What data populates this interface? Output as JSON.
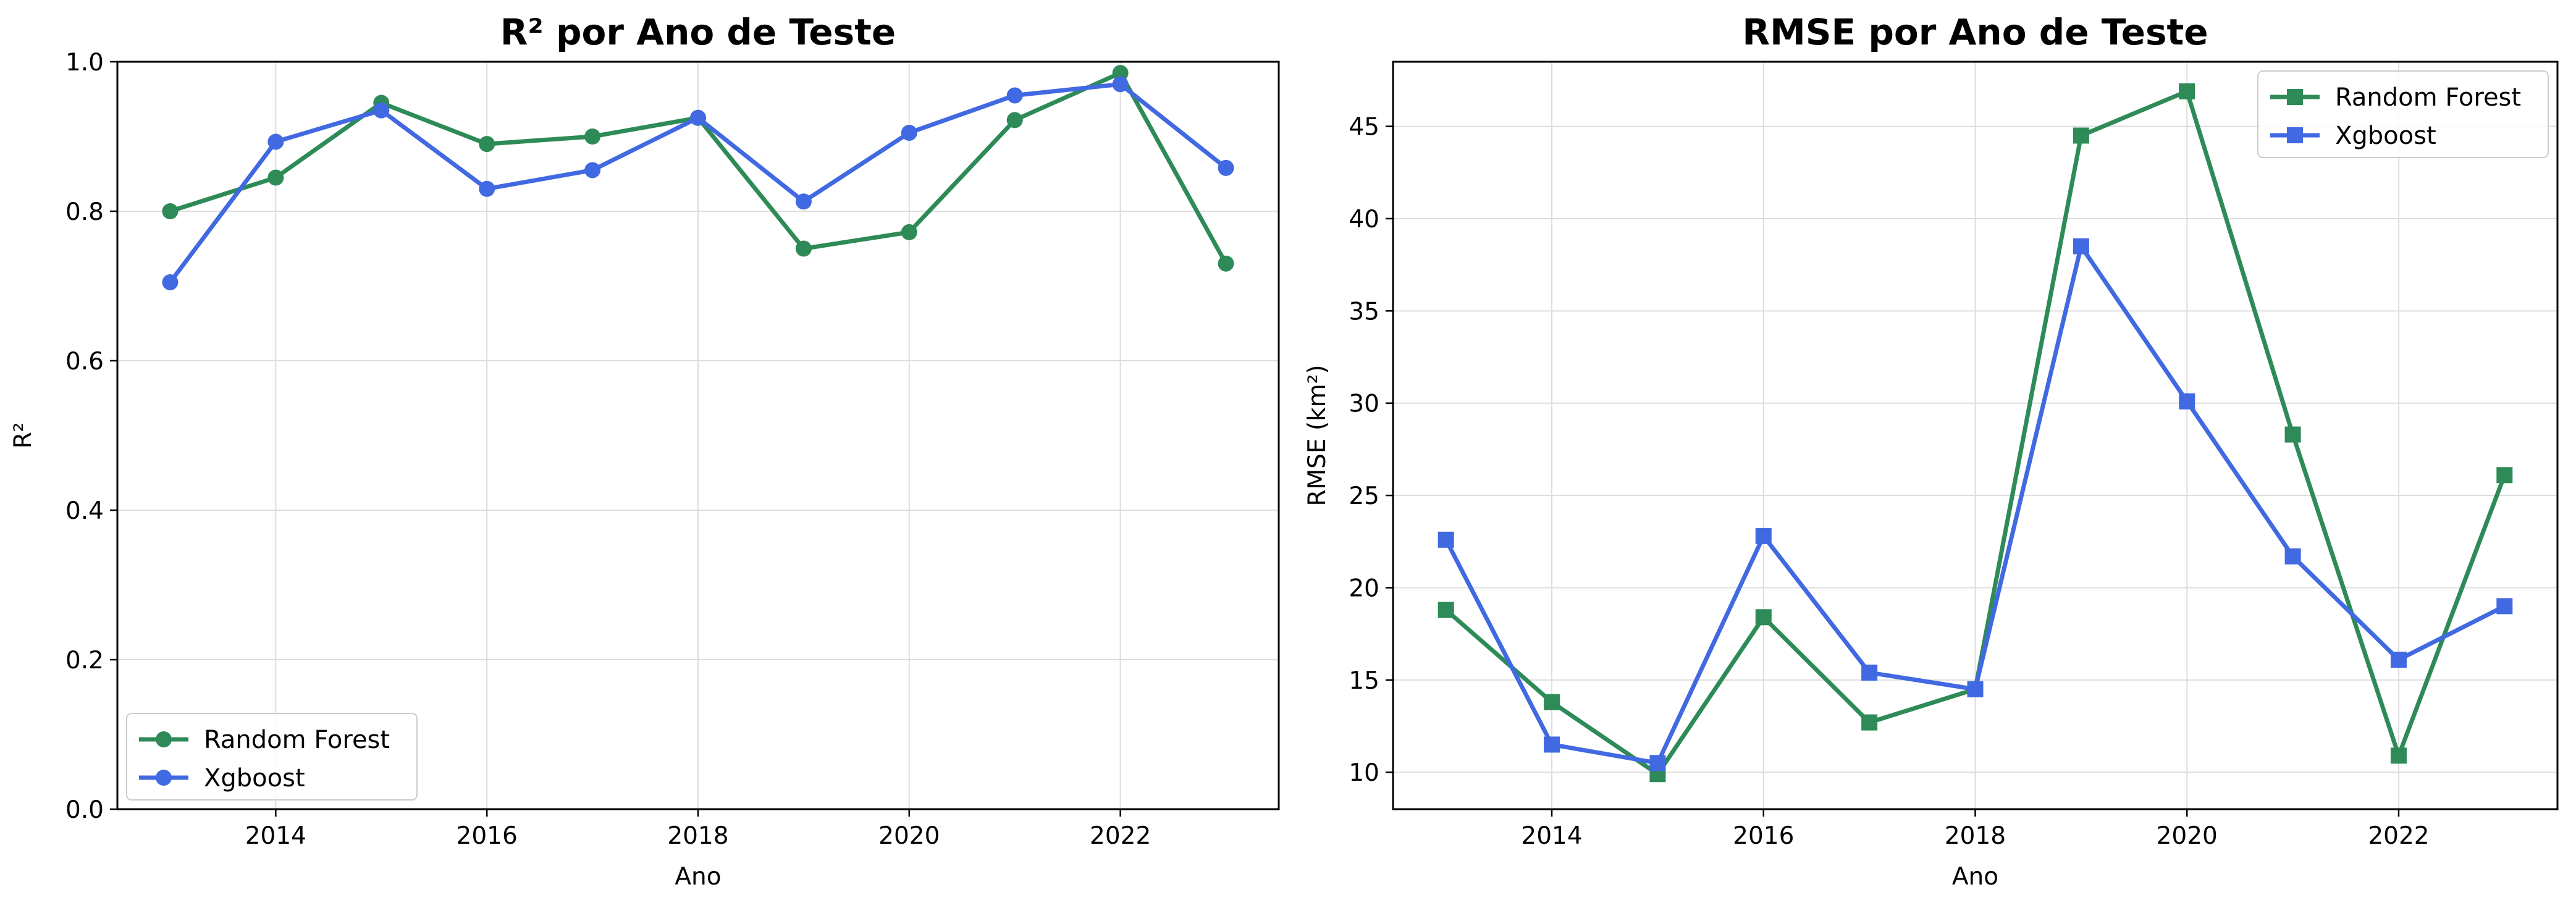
{
  "chart_data": [
    {
      "type": "line",
      "title": "R² por Ano de Teste",
      "xlabel": "Ano",
      "ylabel": "R²",
      "xlim": [
        2012.5,
        2023.5
      ],
      "ylim": [
        0.0,
        1.0
      ],
      "xticks": [
        2014,
        2016,
        2018,
        2020,
        2022
      ],
      "yticks": [
        0.0,
        0.2,
        0.4,
        0.6,
        0.8,
        1.0
      ],
      "ytick_labels": [
        "0.0",
        "0.2",
        "0.4",
        "0.6",
        "0.8",
        "1.0"
      ],
      "grid": true,
      "legend_position": "lower-left",
      "marker": "circle",
      "x": [
        2013,
        2014,
        2015,
        2016,
        2017,
        2018,
        2019,
        2020,
        2021,
        2022,
        2023
      ],
      "series": [
        {
          "name": "Random Forest",
          "color": "#2e8b57",
          "values": [
            0.8,
            0.845,
            0.945,
            0.89,
            0.9,
            0.925,
            0.75,
            0.772,
            0.922,
            0.985,
            0.73
          ]
        },
        {
          "name": "Xgboost",
          "color": "#4169e1",
          "values": [
            0.705,
            0.893,
            0.935,
            0.83,
            0.855,
            0.925,
            0.813,
            0.905,
            0.955,
            0.97,
            0.858
          ]
        }
      ]
    },
    {
      "type": "line",
      "title": "RMSE por Ano de Teste",
      "xlabel": "Ano",
      "ylabel": "RMSE (km²)",
      "xlim": [
        2012.5,
        2023.5
      ],
      "ylim": [
        8.0,
        48.5
      ],
      "xticks": [
        2014,
        2016,
        2018,
        2020,
        2022
      ],
      "yticks": [
        10,
        15,
        20,
        25,
        30,
        35,
        40,
        45
      ],
      "ytick_labels": [
        "10",
        "15",
        "20",
        "25",
        "30",
        "35",
        "40",
        "45"
      ],
      "grid": true,
      "legend_position": "upper-right",
      "marker": "square",
      "x": [
        2013,
        2014,
        2015,
        2016,
        2017,
        2018,
        2019,
        2020,
        2021,
        2022,
        2023
      ],
      "series": [
        {
          "name": "Random Forest",
          "color": "#2e8b57",
          "values": [
            18.8,
            13.8,
            9.9,
            18.4,
            12.7,
            14.5,
            44.5,
            46.9,
            28.3,
            10.9,
            26.1
          ]
        },
        {
          "name": "Xgboost",
          "color": "#4169e1",
          "values": [
            22.6,
            11.5,
            10.5,
            22.8,
            15.4,
            14.5,
            38.5,
            30.1,
            21.7,
            16.1,
            19.0
          ]
        }
      ]
    }
  ]
}
